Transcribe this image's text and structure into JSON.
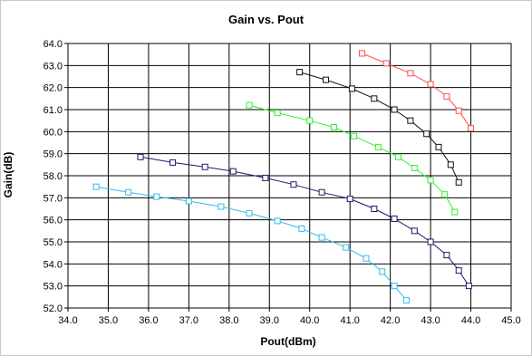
{
  "chart_data": {
    "type": "line",
    "title": "Gain vs. Pout",
    "xlabel": "Pout(dBm)",
    "ylabel": "Gain(dB)",
    "xlim": [
      34.0,
      45.0
    ],
    "ylim": [
      52.0,
      64.0
    ],
    "x_ticks": [
      "34.0",
      "35.0",
      "36.0",
      "37.0",
      "38.0",
      "39.0",
      "40.0",
      "41.0",
      "42.0",
      "43.0",
      "44.0",
      "45.0"
    ],
    "y_ticks": [
      "52.0",
      "53.0",
      "54.0",
      "55.0",
      "56.0",
      "57.0",
      "58.0",
      "59.0",
      "60.0",
      "61.0",
      "62.0",
      "63.0",
      "64.0"
    ],
    "grid": true,
    "legend": "none",
    "series": [
      {
        "color": "#ff4c4c",
        "x": [
          41.3,
          41.9,
          42.5,
          43.0,
          43.4,
          43.7,
          44.0
        ],
        "y": [
          63.55,
          63.1,
          62.65,
          62.15,
          61.6,
          60.95,
          60.15
        ]
      },
      {
        "color": "#111111",
        "x": [
          39.75,
          40.4,
          41.05,
          41.6,
          42.1,
          42.5,
          42.9,
          43.2,
          43.5,
          43.7
        ],
        "y": [
          62.7,
          62.35,
          61.95,
          61.5,
          61.0,
          60.5,
          59.9,
          59.3,
          58.5,
          57.7
        ]
      },
      {
        "color": "#33ee33",
        "x": [
          38.5,
          39.2,
          40.0,
          40.6,
          41.1,
          41.7,
          42.2,
          42.6,
          43.0,
          43.35,
          43.6
        ],
        "y": [
          61.2,
          60.85,
          60.5,
          60.2,
          59.8,
          59.3,
          58.85,
          58.35,
          57.8,
          57.15,
          56.35
        ]
      },
      {
        "color": "#1a1a6b",
        "x": [
          35.8,
          36.6,
          37.4,
          38.1,
          38.9,
          39.6,
          40.3,
          41.0,
          41.6,
          42.1,
          42.6,
          43.0,
          43.4,
          43.7,
          43.95
        ],
        "y": [
          58.85,
          58.6,
          58.4,
          58.2,
          57.9,
          57.6,
          57.25,
          56.95,
          56.5,
          56.05,
          55.5,
          55.0,
          54.4,
          53.7,
          53.0
        ]
      },
      {
        "color": "#33bbee",
        "x": [
          34.7,
          35.5,
          36.2,
          37.0,
          37.8,
          38.5,
          39.2,
          39.8,
          40.3,
          40.9,
          41.4,
          41.8,
          42.1,
          42.4
        ],
        "y": [
          57.5,
          57.25,
          57.05,
          56.85,
          56.6,
          56.3,
          55.95,
          55.6,
          55.2,
          54.75,
          54.25,
          53.65,
          53.0,
          52.35
        ]
      }
    ]
  }
}
